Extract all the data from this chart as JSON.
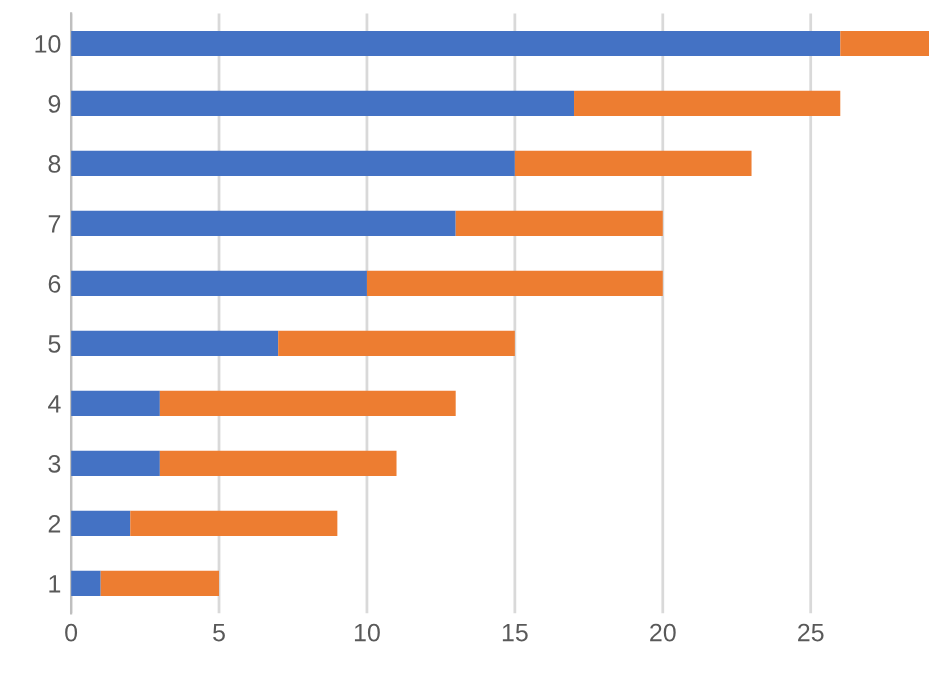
{
  "chart_data": {
    "type": "bar",
    "orientation": "horizontal",
    "stacked": true,
    "categories": [
      "10",
      "9",
      "8",
      "7",
      "6",
      "5",
      "4",
      "3",
      "2",
      "1"
    ],
    "series": [
      {
        "color": "#4472c4",
        "values": [
          26,
          17,
          15,
          13,
          10,
          7,
          3,
          3,
          2,
          1
        ]
      },
      {
        "color": "#ed7d31",
        "values": [
          3,
          9,
          8,
          7,
          10,
          8,
          10,
          8,
          7,
          4
        ]
      }
    ],
    "xlim": [
      0,
      29
    ],
    "xticks": [
      0,
      5,
      10,
      15,
      20,
      25
    ],
    "grid": "x",
    "legend": false
  }
}
